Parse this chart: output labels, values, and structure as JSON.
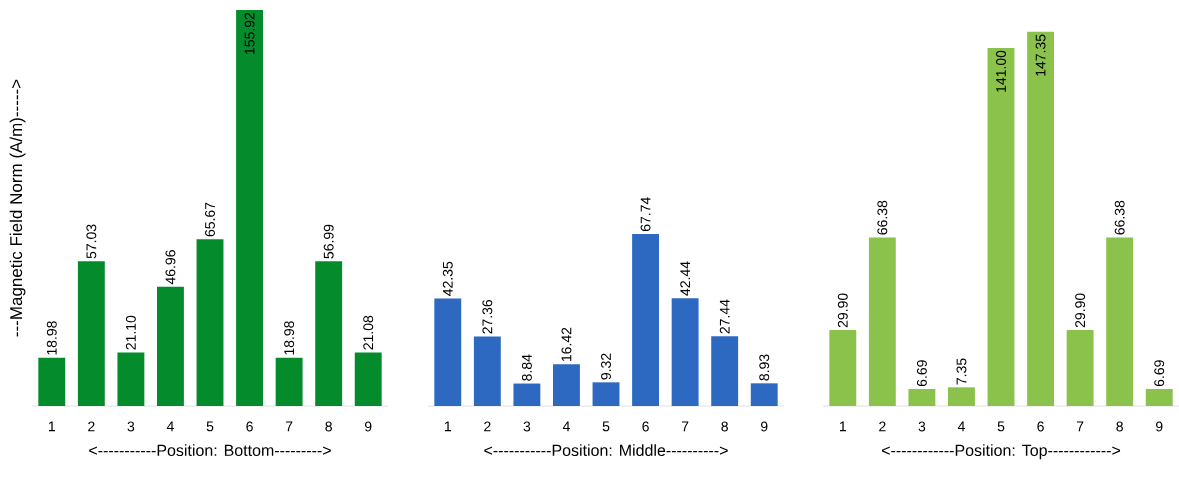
{
  "chart_data": [
    {
      "type": "bar",
      "ylabel": "---Magnetic Field Norm (A/m)----->",
      "xlabel": "<-----------Position: Bottom--------->",
      "categories": [
        "1",
        "2",
        "3",
        "4",
        "5",
        "6",
        "7",
        "8",
        "9"
      ],
      "color": "#038b2c",
      "values": [
        18.98,
        57.03,
        21.1,
        46.96,
        65.67,
        155.92,
        18.98,
        56.99,
        21.08
      ],
      "value_labels": [
        "18.98",
        "57.03",
        "21.10",
        "46.96",
        "65.67",
        "155.92",
        "18.98",
        "56.99",
        "21.08"
      ]
    },
    {
      "type": "bar",
      "xlabel": "<-----------Position: Middle---------->",
      "categories": [
        "1",
        "2",
        "3",
        "4",
        "5",
        "6",
        "7",
        "8",
        "9"
      ],
      "color": "#2e69c1",
      "values": [
        42.35,
        27.36,
        8.84,
        16.42,
        9.32,
        67.74,
        42.44,
        27.44,
        8.93
      ],
      "value_labels": [
        "42.35",
        "27.36",
        "8.84",
        "16.42",
        "9.32",
        "67.74",
        "42.44",
        "27.44",
        "8.93"
      ]
    },
    {
      "type": "bar",
      "xlabel": "<------------Position: Top------------>",
      "categories": [
        "1",
        "2",
        "3",
        "4",
        "5",
        "6",
        "7",
        "8",
        "9"
      ],
      "color": "#8bc24c",
      "values": [
        29.9,
        66.38,
        6.69,
        7.35,
        141.0,
        147.35,
        29.9,
        66.38,
        6.69
      ],
      "value_labels": [
        "29.90",
        "66.38",
        "6.69",
        "7.35",
        "141.00",
        "147.35",
        "29.90",
        "66.38",
        "6.69"
      ]
    }
  ]
}
